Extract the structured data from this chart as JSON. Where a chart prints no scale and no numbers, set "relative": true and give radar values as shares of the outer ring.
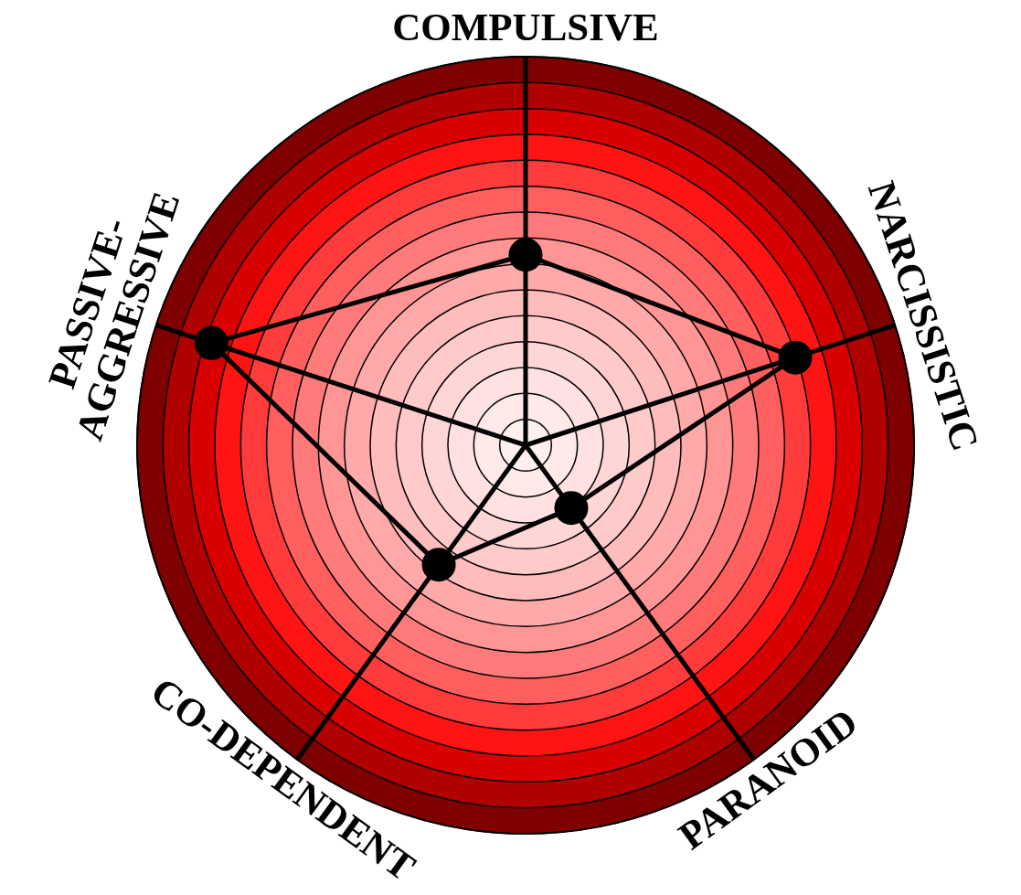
{
  "chart_data": {
    "type": "radar",
    "relative": true,
    "grid": true,
    "marker": "circle",
    "line_style": "solid",
    "categories": [
      "COMPULSIVE",
      "NARCISSISTIC",
      "PARANOID",
      "CO-DEPENDENT",
      "PASSIVE-AGGRESSIVE"
    ],
    "series": [
      {
        "color": "#000000",
        "values": [
          0.49,
          0.73,
          0.2,
          0.38,
          0.85
        ]
      }
    ]
  }
}
